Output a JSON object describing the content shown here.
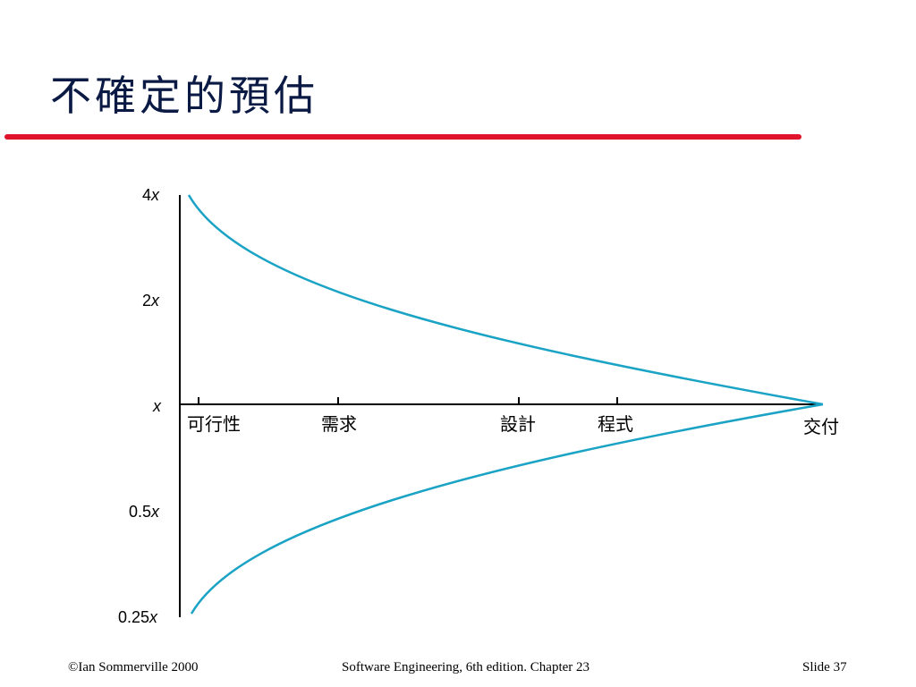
{
  "slide": {
    "title": "不確定的預估",
    "accent_color": "#e0142c",
    "curve_color": "#1aa3c4"
  },
  "diagram": {
    "y_tick_labels": [
      "4x",
      "2x",
      "x",
      "0.5x",
      "0.25x"
    ],
    "phase_labels": [
      "可行性",
      "需求",
      "設計",
      "程式",
      "交付"
    ]
  },
  "footer": {
    "left": "©Ian Sommerville 2000",
    "center": "Software Engineering, 6th edition. Chapter 23",
    "right": "Slide 37"
  }
}
